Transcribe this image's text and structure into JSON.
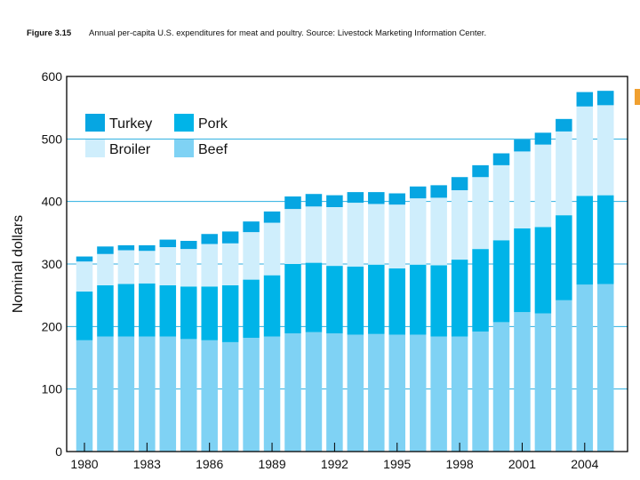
{
  "caption": {
    "figure_label": "Figure 3.15",
    "text": "Annual per-capita U.S. expenditures for meat and poultry. Source: Livestock Marketing Information Center."
  },
  "colors": {
    "beef": "#7fd2f4",
    "pork": "#00b4e8",
    "broiler": "#cfeefc",
    "turkey": "#06a6e2",
    "grid": "#2aaee0",
    "frame": "#000000"
  },
  "chart_data": {
    "type": "bar",
    "stacked": true,
    "ylabel": "Nominal dollars",
    "xlabel": "",
    "ylim": [
      0,
      600
    ],
    "yticks": [
      0,
      100,
      200,
      300,
      400,
      500,
      600
    ],
    "xtick_labels": [
      "1980",
      "1983",
      "1986",
      "1989",
      "1992",
      "1995",
      "1998",
      "2001",
      "2004"
    ],
    "grid": true,
    "legend_position": "top-left",
    "categories": [
      1980,
      1981,
      1982,
      1983,
      1984,
      1985,
      1986,
      1987,
      1988,
      1989,
      1990,
      1991,
      1992,
      1993,
      1994,
      1995,
      1996,
      1997,
      1998,
      1999,
      2000,
      2001,
      2002,
      2003,
      2004,
      2005
    ],
    "series": [
      {
        "name": "Beef",
        "key": "beef",
        "values": [
          178,
          184,
          184,
          184,
          184,
          180,
          178,
          175,
          182,
          184,
          189,
          191,
          189,
          187,
          188,
          187,
          187,
          184,
          184,
          192,
          207,
          223,
          221,
          242,
          267,
          268
        ]
      },
      {
        "name": "Pork",
        "key": "pork",
        "values": [
          78,
          82,
          84,
          85,
          82,
          84,
          86,
          91,
          93,
          98,
          111,
          111,
          108,
          109,
          111,
          106,
          112,
          114,
          123,
          132,
          131,
          134,
          138,
          136,
          142,
          142
        ]
      },
      {
        "name": "Broiler",
        "key": "broiler",
        "values": [
          48,
          50,
          54,
          52,
          61,
          60,
          68,
          67,
          76,
          84,
          88,
          90,
          94,
          102,
          97,
          102,
          106,
          108,
          111,
          115,
          120,
          123,
          132,
          134,
          143,
          144
        ]
      },
      {
        "name": "Turkey",
        "key": "turkey",
        "values": [
          8,
          12,
          8,
          9,
          12,
          13,
          16,
          19,
          17,
          18,
          20,
          20,
          19,
          17,
          19,
          18,
          19,
          20,
          21,
          19,
          19,
          19,
          19,
          20,
          23,
          23
        ]
      }
    ],
    "legend": [
      {
        "key": "turkey",
        "label": "Turkey"
      },
      {
        "key": "pork",
        "label": "Pork"
      },
      {
        "key": "broiler",
        "label": "Broiler"
      },
      {
        "key": "beef",
        "label": "Beef"
      }
    ]
  }
}
